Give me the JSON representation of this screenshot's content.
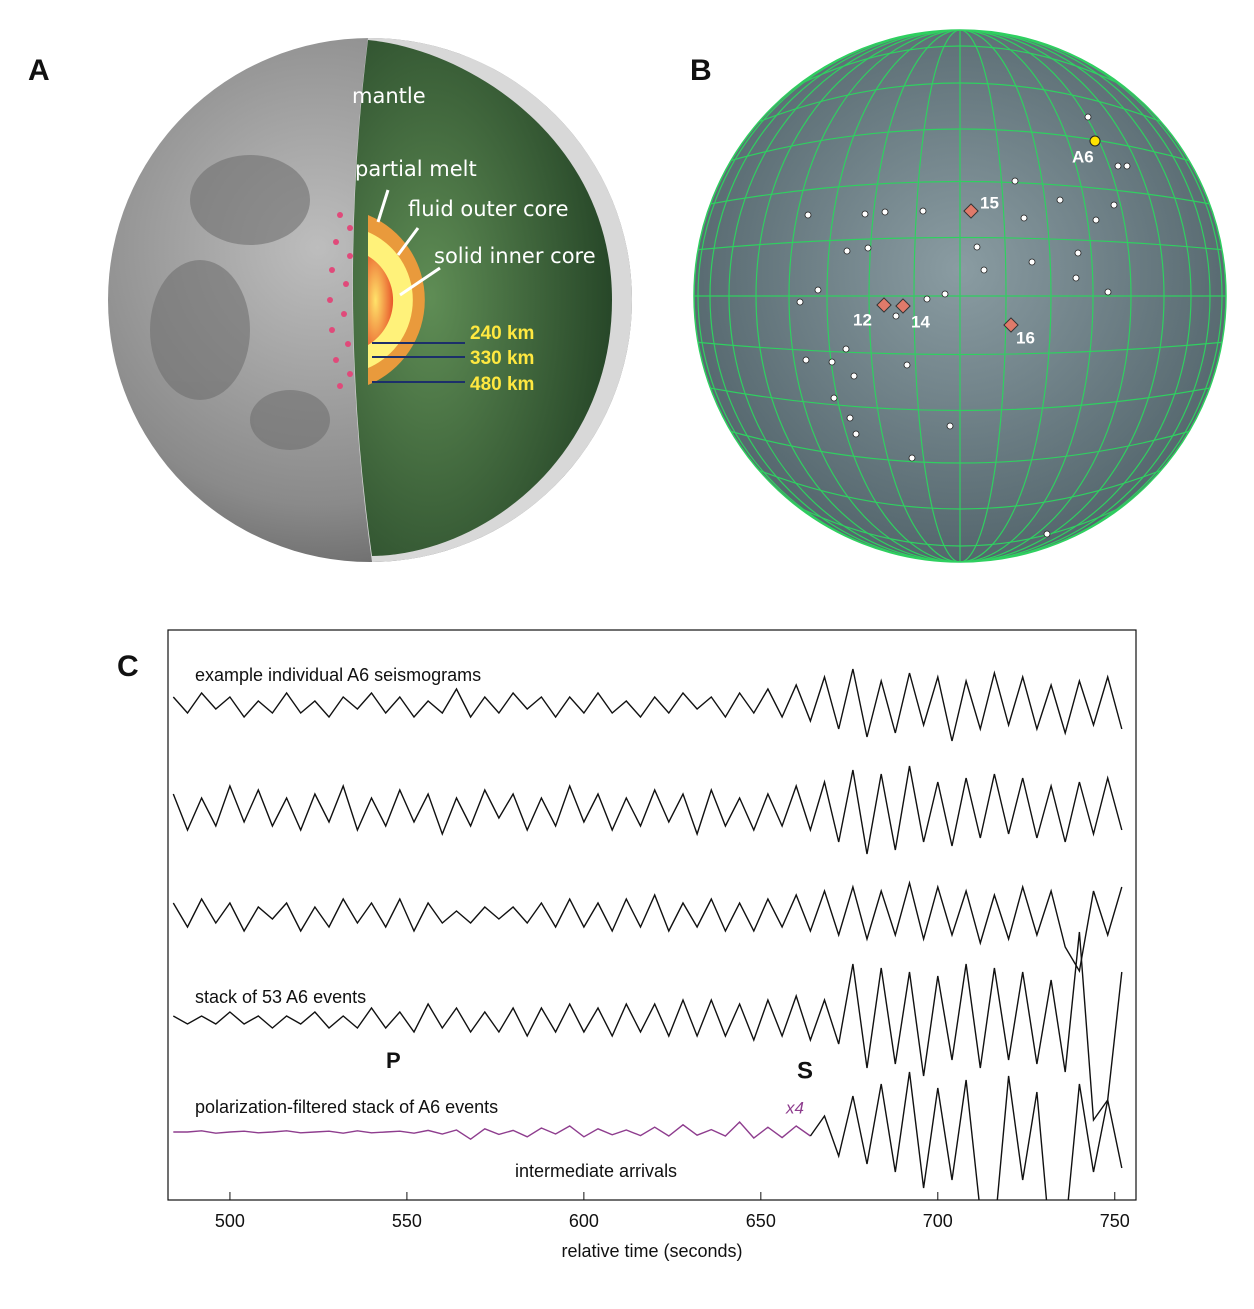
{
  "panel_a": {
    "label": "A",
    "labels": [
      "mantle",
      "partial melt",
      "fluid outer core",
      "solid inner core"
    ],
    "depths": [
      "240 km",
      "330 km",
      "480 km"
    ]
  },
  "panel_b": {
    "label": "B",
    "sites": [
      "A6",
      "15",
      "12",
      "14",
      "16"
    ]
  },
  "chart_data": {
    "type": "line",
    "panel_label": "C",
    "x": [
      484,
      488,
      492,
      496,
      500,
      504,
      508,
      512,
      516,
      520,
      524,
      528,
      532,
      536,
      540,
      544,
      548,
      552,
      556,
      560,
      564,
      568,
      572,
      576,
      580,
      584,
      588,
      592,
      596,
      600,
      604,
      608,
      612,
      616,
      620,
      624,
      628,
      632,
      636,
      640,
      644,
      648,
      652,
      656,
      660,
      664,
      668,
      672,
      676,
      680,
      684,
      688,
      692,
      696,
      700,
      704,
      708,
      712,
      716,
      720,
      724,
      728,
      732,
      736,
      740,
      744,
      748,
      752
    ],
    "series": [
      {
        "color": "#111111",
        "values": [
          2,
          -2,
          3,
          -1,
          2,
          -3,
          1,
          -2,
          3,
          -2,
          1,
          -3,
          2,
          -1,
          3,
          -2,
          2,
          -3,
          1,
          -2,
          4,
          -3,
          2,
          -2,
          3,
          -1,
          2,
          -3,
          2,
          -2,
          3,
          -2,
          1,
          -3,
          2,
          -2,
          3,
          -1,
          2,
          -3,
          3,
          -2,
          4,
          -3,
          5,
          -4,
          7,
          -6,
          9,
          -8,
          6,
          -7,
          8,
          -5,
          7,
          -9,
          6,
          -6,
          8,
          -5,
          7,
          -6,
          5,
          -7,
          6,
          -5,
          7,
          -6
        ]
      },
      {
        "color": "#111111",
        "values": [
          4,
          -5,
          3,
          -4,
          6,
          -3,
          5,
          -4,
          3,
          -5,
          4,
          -3,
          6,
          -5,
          3,
          -4,
          5,
          -3,
          4,
          -6,
          3,
          -4,
          5,
          -2,
          4,
          -5,
          3,
          -4,
          6,
          -3,
          4,
          -5,
          3,
          -4,
          5,
          -3,
          4,
          -6,
          5,
          -4,
          3,
          -5,
          4,
          -4,
          6,
          -5,
          7,
          -8,
          10,
          -11,
          9,
          -10,
          11,
          -8,
          7,
          -9,
          8,
          -7,
          9,
          -6,
          8,
          -7,
          6,
          -8,
          7,
          -6,
          8,
          -5
        ]
      },
      {
        "color": "#111111",
        "values": [
          3,
          -3,
          4,
          -2,
          3,
          -4,
          2,
          -1,
          3,
          -4,
          2,
          -3,
          4,
          -2,
          3,
          -3,
          4,
          -4,
          3,
          -2,
          1,
          -2,
          2,
          -1,
          2,
          -2,
          3,
          -3,
          4,
          -3,
          3,
          -4,
          4,
          -3,
          5,
          -4,
          3,
          -3,
          4,
          -4,
          3,
          -4,
          4,
          -3,
          5,
          -4,
          6,
          -5,
          7,
          -6,
          6,
          -5,
          8,
          -6,
          7,
          -5,
          6,
          -7,
          5,
          -6,
          7,
          -5,
          6,
          -8,
          -14,
          6,
          -5,
          7
        ]
      },
      {
        "color": "#111111",
        "values": [
          1,
          -1,
          1,
          -1,
          2,
          -1,
          1,
          -2,
          1,
          -1,
          2,
          -2,
          1,
          -2,
          3,
          -2,
          2,
          -3,
          4,
          -2,
          3,
          -3,
          2,
          -3,
          3,
          -4,
          3,
          -3,
          4,
          -3,
          3,
          -4,
          4,
          -3,
          4,
          -4,
          5,
          -4,
          5,
          -4,
          4,
          -5,
          5,
          -4,
          6,
          -5,
          5,
          -6,
          14,
          -12,
          13,
          -11,
          12,
          -14,
          11,
          -10,
          14,
          -12,
          13,
          -10,
          12,
          -11,
          10,
          -13,
          22,
          -25,
          -20,
          12
        ]
      },
      {
        "color": "#8e3d8e",
        "values": [
          0,
          0,
          0.3,
          -0.3,
          0,
          0.2,
          -0.2,
          0,
          0.3,
          -0.2,
          0,
          0.2,
          -0.3,
          0.3,
          -0.2,
          0,
          0.2,
          -0.3,
          0.4,
          -0.5,
          0.5,
          -1.8,
          0.8,
          -0.6,
          0.4,
          -1.2,
          1.0,
          -0.5,
          1.5,
          -1.2,
          0.8,
          -0.7,
          0.5,
          -0.9,
          1.2,
          -1.0,
          1.8,
          -0.8,
          0.6,
          -1.0,
          2.5,
          -1.5,
          1.2,
          -1.4,
          1.5,
          -1.0,
          null,
          null,
          null,
          null,
          null,
          null,
          null,
          null,
          null,
          null,
          null,
          null,
          null,
          null,
          null,
          null,
          null,
          null,
          null,
          null,
          null,
          null
        ]
      },
      {
        "color": "#111111",
        "values": [
          null,
          null,
          null,
          null,
          null,
          null,
          null,
          null,
          null,
          null,
          null,
          null,
          null,
          null,
          null,
          null,
          null,
          null,
          null,
          null,
          null,
          null,
          null,
          null,
          null,
          null,
          null,
          null,
          null,
          null,
          null,
          null,
          null,
          null,
          null,
          null,
          null,
          null,
          null,
          null,
          null,
          null,
          null,
          null,
          null,
          -1,
          4,
          -6,
          9,
          -8,
          12,
          -10,
          15,
          -14,
          11,
          -12,
          13,
          -20,
          -25,
          14,
          -12,
          10,
          -30,
          -25,
          12,
          -10,
          8,
          -9
        ]
      }
    ],
    "xlim": [
      482.5,
      756
    ],
    "xticks": [
      500,
      550,
      600,
      650,
      700,
      750
    ],
    "xlabel": "relative time (seconds)",
    "annotations": [
      "example individual A6 seismograms",
      "stack of 53 A6 events",
      "P",
      "S",
      "polarization-filtered stack of A6 events",
      "x4",
      "intermediate arrivals"
    ]
  }
}
